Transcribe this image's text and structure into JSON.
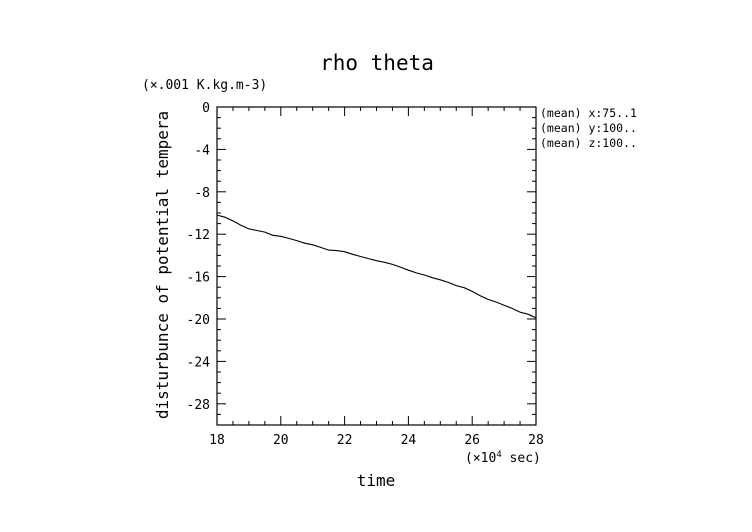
{
  "chart_data": {
    "type": "line",
    "title": "rho theta",
    "ylabel": "disturbunce of potential tempera",
    "yunit": "(×.001 K.kg.m-3)",
    "xlabel": "time",
    "xunit": "(×10",
    "xunit_exp": "4",
    "xunit_suffix": " sec)",
    "xlim": [
      18,
      28
    ],
    "ylim": [
      -30,
      0
    ],
    "xticks": [
      18,
      20,
      22,
      24,
      26,
      28
    ],
    "yticks": [
      0,
      -4,
      -8,
      -12,
      -16,
      -20,
      -24,
      -28
    ],
    "annotations": [
      "(mean) x:75..1",
      "(mean) y:100..",
      "(mean) z:100.."
    ],
    "series": [
      {
        "x": [
          18.0,
          18.25,
          18.5,
          18.75,
          19.0,
          19.25,
          19.5,
          19.75,
          20.0,
          20.25,
          20.5,
          20.75,
          21.0,
          21.25,
          21.5,
          21.75,
          22.0,
          22.25,
          22.5,
          22.75,
          23.0,
          23.25,
          23.5,
          23.75,
          24.0,
          24.25,
          24.5,
          24.75,
          25.0,
          25.25,
          25.5,
          25.75,
          26.0,
          26.25,
          26.5,
          26.75,
          27.0,
          27.25,
          27.5,
          27.75,
          28.0
        ],
        "y": [
          -10.2,
          -10.4,
          -10.75,
          -11.15,
          -11.5,
          -11.65,
          -11.8,
          -12.1,
          -12.2,
          -12.4,
          -12.6,
          -12.85,
          -13.0,
          -13.25,
          -13.5,
          -13.55,
          -13.65,
          -13.9,
          -14.1,
          -14.3,
          -14.5,
          -14.65,
          -14.85,
          -15.1,
          -15.4,
          -15.65,
          -15.85,
          -16.1,
          -16.3,
          -16.55,
          -16.85,
          -17.05,
          -17.4,
          -17.8,
          -18.15,
          -18.4,
          -18.7,
          -19.0,
          -19.35,
          -19.55,
          -19.9
        ]
      }
    ]
  }
}
